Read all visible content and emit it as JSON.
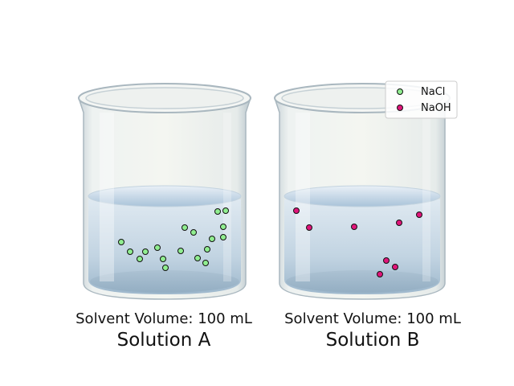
{
  "legend": [
    {
      "label": "NaCl",
      "color": "#90ee90"
    },
    {
      "label": "NaOH",
      "color": "#e0157a"
    }
  ],
  "solutions": [
    {
      "volume_label": "Solvent Volume: 100 mL",
      "name": "Solution A",
      "solute": "NaCl",
      "particle_count": 18
    },
    {
      "volume_label": "Solvent Volume: 100 mL",
      "name": "Solution B",
      "solute": "NaOH",
      "particle_count": 8
    }
  ]
}
